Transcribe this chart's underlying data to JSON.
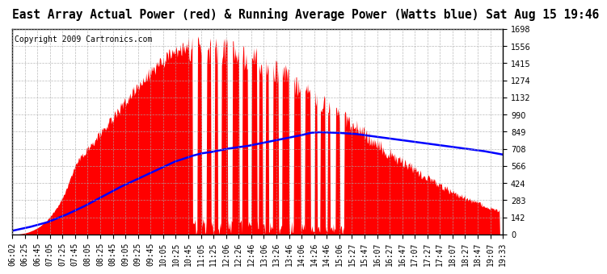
{
  "title": "East Array Actual Power (red) & Running Average Power (Watts blue) Sat Aug 15 19:46",
  "copyright": "Copyright 2009 Cartronics.com",
  "ymax": 1698.0,
  "ymin": 0.0,
  "yticks": [
    0.0,
    141.5,
    283.0,
    424.5,
    566.0,
    707.5,
    849.0,
    990.5,
    1132.0,
    1273.5,
    1415.0,
    1556.5,
    1698.0
  ],
  "xtick_labels": [
    "06:02",
    "06:25",
    "06:45",
    "07:05",
    "07:25",
    "07:45",
    "08:05",
    "08:25",
    "08:45",
    "09:05",
    "09:25",
    "09:45",
    "10:05",
    "10:25",
    "10:45",
    "11:05",
    "11:25",
    "12:06",
    "12:26",
    "12:46",
    "13:06",
    "13:26",
    "13:46",
    "14:06",
    "14:26",
    "14:46",
    "15:06",
    "15:27",
    "15:47",
    "16:07",
    "16:27",
    "16:47",
    "17:07",
    "17:27",
    "17:47",
    "18:07",
    "18:27",
    "18:47",
    "19:07",
    "19:33"
  ],
  "background_color": "#ffffff",
  "plot_bg_color": "#ffffff",
  "grid_color": "#aaaaaa",
  "red_color": "#ff0000",
  "blue_color": "#0000ff",
  "title_fontsize": 10.5,
  "copyright_fontsize": 7,
  "tick_fontsize": 7,
  "blue_x": [
    6.033,
    6.5,
    7.0,
    7.5,
    8.0,
    8.5,
    9.0,
    9.5,
    10.0,
    10.5,
    11.0,
    11.25,
    11.5,
    12.0,
    12.5,
    13.0,
    13.5,
    14.0,
    14.26,
    14.5,
    15.0,
    15.5,
    16.0,
    16.5,
    17.0,
    17.5,
    18.0,
    18.5,
    19.0,
    19.55
  ],
  "blue_y": [
    30,
    60,
    100,
    160,
    230,
    310,
    390,
    460,
    530,
    600,
    650,
    670,
    680,
    710,
    730,
    760,
    790,
    820,
    840,
    845,
    840,
    830,
    810,
    790,
    770,
    750,
    730,
    710,
    690,
    660
  ]
}
